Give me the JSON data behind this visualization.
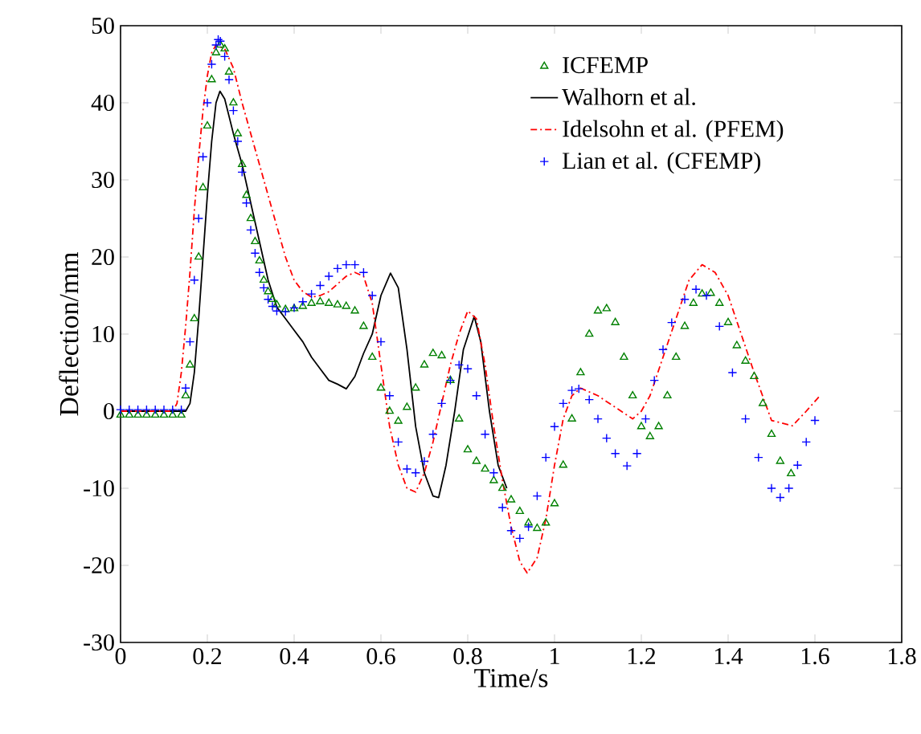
{
  "chart_data": {
    "type": "line",
    "xlabel": "Time/s",
    "ylabel": "Deflection/mm",
    "xlim": [
      0,
      1.8
    ],
    "ylim": [
      -30,
      50
    ],
    "xticks": [
      0,
      0.2,
      0.4,
      0.6,
      0.8,
      1,
      1.2,
      1.4,
      1.6,
      1.8
    ],
    "yticks": [
      -30,
      -20,
      -10,
      0,
      10,
      20,
      30,
      40,
      50
    ],
    "grid": false,
    "legend": "top right",
    "series": [
      {
        "name": "ICFEMP",
        "type": "scatter",
        "marker": "triangle",
        "color": "#008000",
        "x": [
          0,
          0.02,
          0.04,
          0.06,
          0.08,
          0.1,
          0.12,
          0.14,
          0.15,
          0.16,
          0.17,
          0.18,
          0.19,
          0.2,
          0.21,
          0.22,
          0.23,
          0.24,
          0.25,
          0.26,
          0.27,
          0.28,
          0.29,
          0.3,
          0.31,
          0.32,
          0.33,
          0.34,
          0.35,
          0.36,
          0.38,
          0.4,
          0.42,
          0.44,
          0.46,
          0.48,
          0.5,
          0.52,
          0.54,
          0.56,
          0.58,
          0.6,
          0.62,
          0.64,
          0.66,
          0.68,
          0.7,
          0.72,
          0.74,
          0.76,
          0.78,
          0.8,
          0.82,
          0.84,
          0.86,
          0.88,
          0.9,
          0.92,
          0.94,
          0.96,
          0.98,
          1.0,
          1.02,
          1.04,
          1.06,
          1.08,
          1.1,
          1.12,
          1.14,
          1.16,
          1.18,
          1.2,
          1.22,
          1.24,
          1.26,
          1.28,
          1.3,
          1.32,
          1.34,
          1.36,
          1.38,
          1.4,
          1.42,
          1.44,
          1.46,
          1.48,
          1.5,
          1.52,
          1.545
        ],
        "values": [
          -0.5,
          -0.5,
          -0.5,
          -0.5,
          -0.5,
          -0.5,
          -0.5,
          -0.5,
          2,
          6,
          12,
          20,
          29,
          37,
          43,
          46.5,
          47.5,
          47,
          44,
          40,
          36,
          32,
          28,
          25,
          22,
          19.5,
          17,
          15.5,
          14.5,
          13.8,
          13.2,
          13.3,
          13.6,
          14,
          14.2,
          14,
          13.8,
          13.6,
          13,
          11,
          7,
          3,
          0,
          -1.3,
          0.5,
          3,
          6,
          7.5,
          7.2,
          4,
          -1,
          -5,
          -6.5,
          -7.5,
          -9,
          -10,
          -11.5,
          -13,
          -14.5,
          -15.2,
          -14.5,
          -12,
          -7,
          -1,
          5,
          10,
          13,
          13.3,
          11.5,
          7,
          2,
          -2,
          -3.3,
          -2,
          2,
          7,
          11,
          14,
          15.2,
          15.3,
          14,
          11.5,
          8.5,
          6.5,
          4.5,
          1,
          -3,
          -6.5,
          -8.1
        ]
      },
      {
        "name": "Walhorn et al.",
        "line_style": "solid",
        "color": "#000000",
        "x": [
          0,
          0.15,
          0.16,
          0.17,
          0.18,
          0.19,
          0.2,
          0.21,
          0.22,
          0.229,
          0.24,
          0.26,
          0.28,
          0.3,
          0.32,
          0.34,
          0.36,
          0.38,
          0.4,
          0.42,
          0.44,
          0.46,
          0.48,
          0.5,
          0.52,
          0.54,
          0.56,
          0.58,
          0.6,
          0.622,
          0.64,
          0.66,
          0.68,
          0.7,
          0.72,
          0.733,
          0.75,
          0.77,
          0.79,
          0.815,
          0.83,
          0.85,
          0.87,
          0.89
        ],
        "values": [
          0,
          0,
          1,
          5,
          12,
          20,
          28,
          35,
          40,
          41.5,
          40.5,
          36,
          32,
          27,
          22,
          17,
          13.5,
          12,
          10.5,
          9,
          7,
          5.5,
          4,
          3.5,
          2.9,
          4.5,
          7.5,
          10,
          15,
          17.9,
          16,
          8,
          -2,
          -8,
          -11,
          -11.2,
          -7,
          0,
          8,
          12.3,
          9,
          0,
          -7,
          -10
        ]
      },
      {
        "name": "Idelsohn et al. (PFEM)",
        "line_style": "dashdot",
        "color": "#ff0000",
        "x": [
          0,
          0.12,
          0.13,
          0.14,
          0.15,
          0.16,
          0.17,
          0.18,
          0.19,
          0.2,
          0.21,
          0.22,
          0.24,
          0.26,
          0.28,
          0.3,
          0.32,
          0.34,
          0.36,
          0.38,
          0.4,
          0.42,
          0.44,
          0.46,
          0.48,
          0.5,
          0.52,
          0.54,
          0.56,
          0.58,
          0.6,
          0.62,
          0.64,
          0.66,
          0.68,
          0.7,
          0.72,
          0.74,
          0.76,
          0.78,
          0.8,
          0.82,
          0.84,
          0.86,
          0.88,
          0.9,
          0.92,
          0.937,
          0.96,
          0.98,
          1.0,
          1.02,
          1.04,
          1.06,
          1.1,
          1.14,
          1.18,
          1.2,
          1.22,
          1.25,
          1.28,
          1.31,
          1.34,
          1.37,
          1.4,
          1.43,
          1.46,
          1.5,
          1.548,
          1.58,
          1.61
        ],
        "values": [
          0,
          0,
          1,
          5,
          11,
          18,
          26,
          33,
          39,
          43.5,
          46.5,
          47.5,
          47,
          44.5,
          40,
          36,
          32,
          28,
          24,
          20,
          17,
          15.5,
          14.8,
          15,
          15.5,
          16.5,
          17.5,
          18,
          17.5,
          14,
          6,
          -2,
          -7,
          -10,
          -10.5,
          -8,
          -4,
          1,
          6,
          10,
          13,
          12,
          6,
          -2,
          -9,
          -15,
          -19.5,
          -21,
          -19,
          -14,
          -7,
          -1,
          2,
          3,
          2,
          0.5,
          -1,
          0,
          2,
          7,
          12,
          17,
          19,
          18,
          15,
          10,
          5,
          -1.2,
          -1.9,
          0,
          1.9
        ]
      },
      {
        "name": "Lian et al. (CFEMP)",
        "type": "scatter",
        "marker": "cross",
        "color": "#0000ff",
        "x": [
          0,
          0.02,
          0.04,
          0.06,
          0.08,
          0.1,
          0.12,
          0.14,
          0.15,
          0.16,
          0.17,
          0.18,
          0.19,
          0.2,
          0.21,
          0.22,
          0.225,
          0.23,
          0.24,
          0.25,
          0.26,
          0.27,
          0.28,
          0.29,
          0.3,
          0.31,
          0.32,
          0.33,
          0.34,
          0.35,
          0.36,
          0.38,
          0.4,
          0.42,
          0.44,
          0.46,
          0.48,
          0.5,
          0.52,
          0.54,
          0.56,
          0.58,
          0.6,
          0.62,
          0.64,
          0.66,
          0.68,
          0.7,
          0.72,
          0.74,
          0.76,
          0.78,
          0.8,
          0.82,
          0.84,
          0.86,
          0.88,
          0.9,
          0.92,
          0.94,
          0.96,
          0.98,
          1.0,
          1.02,
          1.04,
          1.056,
          1.08,
          1.1,
          1.12,
          1.14,
          1.167,
          1.19,
          1.21,
          1.23,
          1.25,
          1.27,
          1.3,
          1.326,
          1.35,
          1.38,
          1.41,
          1.44,
          1.47,
          1.5,
          1.52,
          1.54,
          1.56,
          1.58,
          1.6
        ],
        "values": [
          0.2,
          0.2,
          0.2,
          0.2,
          0.2,
          0.2,
          0.2,
          0.2,
          3,
          9,
          17,
          25,
          33,
          40,
          45,
          47.5,
          48.2,
          48,
          46,
          43,
          39,
          35,
          31,
          27,
          23.5,
          20.5,
          18,
          16,
          14.5,
          13.6,
          13,
          12.9,
          13.4,
          14.2,
          15.2,
          16.3,
          17.5,
          18.5,
          19,
          19,
          18,
          15,
          9,
          2,
          -4,
          -7.5,
          -8,
          -6.5,
          -3,
          1,
          4,
          6,
          5.5,
          2,
          -3,
          -8,
          -12.5,
          -15.5,
          -16.5,
          -15,
          -11,
          -6,
          -2,
          1,
          2.7,
          2.9,
          1.5,
          -1,
          -3.5,
          -5.5,
          -7.1,
          -5.5,
          -1,
          4,
          8,
          11.5,
          14.5,
          15.8,
          15,
          11,
          5,
          -1,
          -6,
          -10,
          -11.2,
          -10,
          -7,
          -4,
          -1.2
        ]
      }
    ]
  }
}
